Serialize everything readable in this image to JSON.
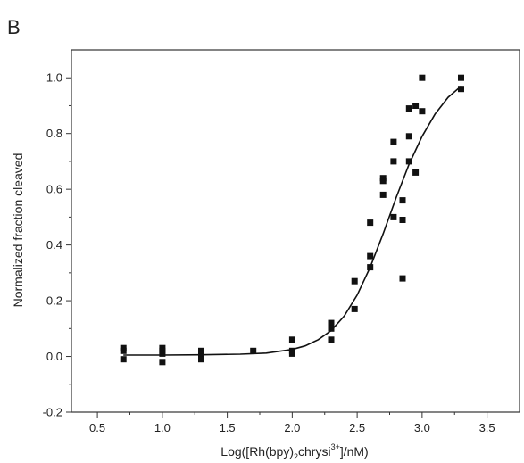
{
  "panel_label": "B",
  "chart_data": {
    "type": "scatter",
    "title": "",
    "xlabel": {
      "prefix": "Log([Rh(bpy)",
      "sub": "2",
      "middle": "chrysi",
      "sup": "3+",
      "suffix": "]/nM)"
    },
    "ylabel": "Normalized fraction cleaved",
    "xlim": [
      0.3,
      3.75
    ],
    "ylim": [
      -0.2,
      1.1
    ],
    "grid": false,
    "x_ticks": [
      0.5,
      1.0,
      1.5,
      2.0,
      2.5,
      3.0,
      3.5
    ],
    "x_tick_labels": [
      "0.5",
      "1.0",
      "1.5",
      "2.0",
      "2.5",
      "3.0",
      "3.5"
    ],
    "y_ticks": [
      -0.2,
      0.0,
      0.2,
      0.4,
      0.6,
      0.8,
      1.0
    ],
    "y_tick_labels": [
      "-0.2",
      "0.0",
      "0.2",
      "0.4",
      "0.6",
      "0.8",
      "1.0"
    ],
    "series": [
      {
        "type": "scatter",
        "marker": "square",
        "color": "#111111",
        "points": [
          [
            0.7,
            0.03
          ],
          [
            0.7,
            -0.01
          ],
          [
            0.7,
            0.02
          ],
          [
            1.0,
            0.03
          ],
          [
            1.0,
            0.01
          ],
          [
            1.0,
            -0.02
          ],
          [
            1.0,
            0.02
          ],
          [
            1.3,
            0.02
          ],
          [
            1.3,
            -0.01
          ],
          [
            1.3,
            0.01
          ],
          [
            1.7,
            0.02
          ],
          [
            2.0,
            0.06
          ],
          [
            2.0,
            0.02
          ],
          [
            2.0,
            0.01
          ],
          [
            2.3,
            0.12
          ],
          [
            2.3,
            0.1
          ],
          [
            2.3,
            0.06
          ],
          [
            2.48,
            0.27
          ],
          [
            2.48,
            0.17
          ],
          [
            2.6,
            0.48
          ],
          [
            2.6,
            0.36
          ],
          [
            2.6,
            0.32
          ],
          [
            2.7,
            0.64
          ],
          [
            2.7,
            0.63
          ],
          [
            2.7,
            0.58
          ],
          [
            2.78,
            0.77
          ],
          [
            2.78,
            0.7
          ],
          [
            2.78,
            0.5
          ],
          [
            2.85,
            0.56
          ],
          [
            2.85,
            0.49
          ],
          [
            2.85,
            0.28
          ],
          [
            2.9,
            0.89
          ],
          [
            2.9,
            0.79
          ],
          [
            2.9,
            0.7
          ],
          [
            2.95,
            0.9
          ],
          [
            2.95,
            0.66
          ],
          [
            3.0,
            1.0
          ],
          [
            3.0,
            0.88
          ],
          [
            3.3,
            1.0
          ],
          [
            3.3,
            0.96
          ]
        ]
      },
      {
        "type": "line",
        "color": "#111111",
        "points": [
          [
            0.7,
            0.005
          ],
          [
            1.0,
            0.005
          ],
          [
            1.3,
            0.006
          ],
          [
            1.6,
            0.008
          ],
          [
            1.8,
            0.012
          ],
          [
            2.0,
            0.025
          ],
          [
            2.1,
            0.038
          ],
          [
            2.2,
            0.06
          ],
          [
            2.3,
            0.093
          ],
          [
            2.4,
            0.145
          ],
          [
            2.5,
            0.22
          ],
          [
            2.6,
            0.32
          ],
          [
            2.7,
            0.44
          ],
          [
            2.8,
            0.57
          ],
          [
            2.9,
            0.69
          ],
          [
            3.0,
            0.79
          ],
          [
            3.1,
            0.87
          ],
          [
            3.2,
            0.93
          ],
          [
            3.3,
            0.97
          ]
        ]
      }
    ]
  }
}
